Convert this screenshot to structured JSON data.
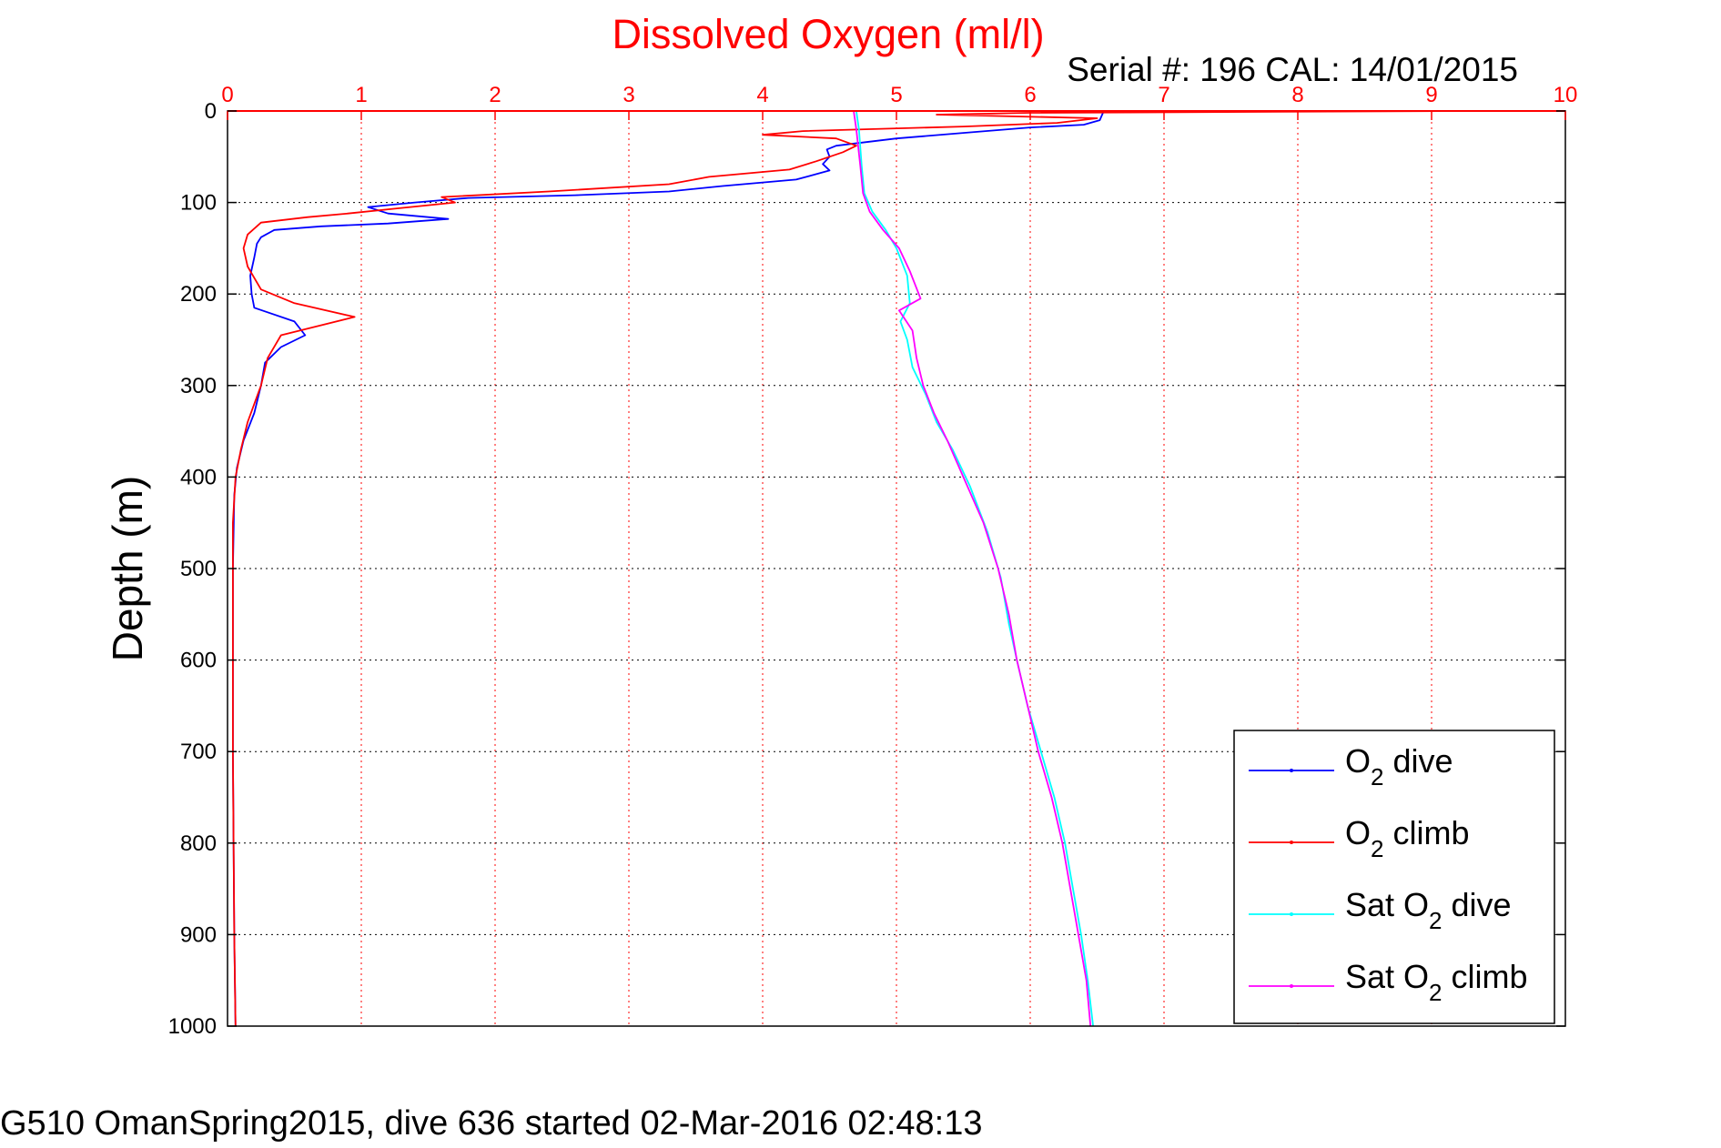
{
  "chart_data": {
    "type": "line",
    "title": "Dissolved Oxygen (ml/l)",
    "subtitle": "Serial #: 196  CAL: 14/01/2015",
    "footer": "G510 OmanSpring2015, dive 636 started 02-Mar-2016 02:48:13",
    "xlabel": "",
    "ylabel": "Depth (m)",
    "xlim": [
      0,
      10
    ],
    "ylim": [
      0,
      1000
    ],
    "y_reversed": true,
    "x_axis_position": "top",
    "grid": true,
    "legend_position": "bottom-right",
    "x_ticks": [
      "0",
      "1",
      "2",
      "3",
      "4",
      "5",
      "6",
      "7",
      "8",
      "9",
      "10"
    ],
    "y_ticks": [
      "0",
      "100",
      "200",
      "300",
      "400",
      "500",
      "600",
      "700",
      "800",
      "900",
      "1000"
    ],
    "colors": {
      "title": "#ff0000",
      "x_axis": "#ff0000",
      "o2_dive": "#0000ff",
      "o2_climb": "#ff0000",
      "sat_dive": "#00ffff",
      "sat_climb": "#ff00ff"
    },
    "legend": [
      {
        "prefix": "O",
        "sub": "2",
        "suffix": " dive",
        "color": "#0000ff"
      },
      {
        "prefix": "O",
        "sub": "2",
        "suffix": " climb",
        "color": "#ff0000"
      },
      {
        "prefix": "Sat O",
        "sub": "2",
        "suffix": " dive",
        "color": "#00ffff"
      },
      {
        "prefix": "Sat O",
        "sub": "2",
        "suffix": " climb",
        "color": "#ff00ff"
      }
    ],
    "series": [
      {
        "key": "o2_dive",
        "color": "#0000ff",
        "points": [
          [
            6.55,
            0
          ],
          [
            6.52,
            10
          ],
          [
            6.4,
            15
          ],
          [
            6.0,
            18
          ],
          [
            5.5,
            24
          ],
          [
            5.0,
            30
          ],
          [
            4.55,
            38
          ],
          [
            4.48,
            42
          ],
          [
            4.5,
            50
          ],
          [
            4.45,
            58
          ],
          [
            4.5,
            65
          ],
          [
            4.25,
            75
          ],
          [
            3.7,
            82
          ],
          [
            3.3,
            88
          ],
          [
            2.6,
            92
          ],
          [
            1.8,
            95
          ],
          [
            1.4,
            100
          ],
          [
            1.05,
            105
          ],
          [
            1.2,
            112
          ],
          [
            1.65,
            118
          ],
          [
            1.2,
            123
          ],
          [
            0.7,
            126
          ],
          [
            0.35,
            130
          ],
          [
            0.25,
            138
          ],
          [
            0.22,
            145
          ],
          [
            0.2,
            160
          ],
          [
            0.17,
            180
          ],
          [
            0.18,
            200
          ],
          [
            0.2,
            215
          ],
          [
            0.5,
            230
          ],
          [
            0.58,
            245
          ],
          [
            0.4,
            258
          ],
          [
            0.28,
            275
          ],
          [
            0.25,
            300
          ],
          [
            0.2,
            330
          ],
          [
            0.12,
            360
          ],
          [
            0.07,
            390
          ],
          [
            0.05,
            420
          ],
          [
            0.04,
            500
          ],
          [
            0.04,
            700
          ],
          [
            0.05,
            900
          ],
          [
            0.06,
            1000
          ]
        ]
      },
      {
        "key": "o2_climb",
        "color": "#ff0000",
        "points": [
          [
            9.3,
            0
          ],
          [
            6.0,
            2
          ],
          [
            5.3,
            4
          ],
          [
            6.5,
            8
          ],
          [
            6.2,
            13
          ],
          [
            5.5,
            17
          ],
          [
            4.3,
            22
          ],
          [
            4.0,
            26
          ],
          [
            4.55,
            30
          ],
          [
            4.7,
            38
          ],
          [
            4.6,
            45
          ],
          [
            4.4,
            55
          ],
          [
            4.2,
            64
          ],
          [
            3.6,
            72
          ],
          [
            3.3,
            80
          ],
          [
            2.4,
            88
          ],
          [
            1.6,
            94
          ],
          [
            1.7,
            100
          ],
          [
            1.3,
            106
          ],
          [
            0.9,
            112
          ],
          [
            0.6,
            116
          ],
          [
            0.25,
            122
          ],
          [
            0.15,
            135
          ],
          [
            0.12,
            150
          ],
          [
            0.15,
            170
          ],
          [
            0.25,
            195
          ],
          [
            0.5,
            210
          ],
          [
            0.95,
            225
          ],
          [
            0.4,
            245
          ],
          [
            0.3,
            270
          ],
          [
            0.25,
            300
          ],
          [
            0.15,
            340
          ],
          [
            0.1,
            370
          ],
          [
            0.06,
            400
          ],
          [
            0.04,
            450
          ],
          [
            0.04,
            700
          ],
          [
            0.05,
            900
          ],
          [
            0.06,
            1000
          ]
        ]
      },
      {
        "key": "sat_dive",
        "color": "#00ffff",
        "points": [
          [
            4.7,
            0
          ],
          [
            4.72,
            20
          ],
          [
            4.74,
            60
          ],
          [
            4.76,
            90
          ],
          [
            4.82,
            110
          ],
          [
            4.92,
            130
          ],
          [
            5.0,
            150
          ],
          [
            5.08,
            180
          ],
          [
            5.1,
            210
          ],
          [
            5.03,
            230
          ],
          [
            5.08,
            250
          ],
          [
            5.12,
            280
          ],
          [
            5.22,
            310
          ],
          [
            5.3,
            340
          ],
          [
            5.42,
            370
          ],
          [
            5.55,
            410
          ],
          [
            5.68,
            460
          ],
          [
            5.78,
            510
          ],
          [
            5.84,
            560
          ],
          [
            5.9,
            600
          ],
          [
            5.98,
            650
          ],
          [
            6.08,
            700
          ],
          [
            6.18,
            750
          ],
          [
            6.26,
            800
          ],
          [
            6.32,
            850
          ],
          [
            6.38,
            900
          ],
          [
            6.43,
            950
          ],
          [
            6.47,
            1000
          ]
        ]
      },
      {
        "key": "sat_climb",
        "color": "#ff00ff",
        "points": [
          [
            4.68,
            0
          ],
          [
            4.7,
            20
          ],
          [
            4.73,
            60
          ],
          [
            4.75,
            90
          ],
          [
            4.8,
            110
          ],
          [
            4.9,
            130
          ],
          [
            5.02,
            150
          ],
          [
            5.1,
            175
          ],
          [
            5.18,
            205
          ],
          [
            5.02,
            218
          ],
          [
            5.12,
            240
          ],
          [
            5.15,
            270
          ],
          [
            5.2,
            300
          ],
          [
            5.28,
            330
          ],
          [
            5.38,
            360
          ],
          [
            5.5,
            400
          ],
          [
            5.65,
            450
          ],
          [
            5.76,
            500
          ],
          [
            5.84,
            550
          ],
          [
            5.9,
            600
          ],
          [
            5.98,
            650
          ],
          [
            6.06,
            700
          ],
          [
            6.16,
            750
          ],
          [
            6.24,
            800
          ],
          [
            6.3,
            850
          ],
          [
            6.36,
            900
          ],
          [
            6.42,
            950
          ],
          [
            6.45,
            1000
          ]
        ]
      }
    ]
  }
}
